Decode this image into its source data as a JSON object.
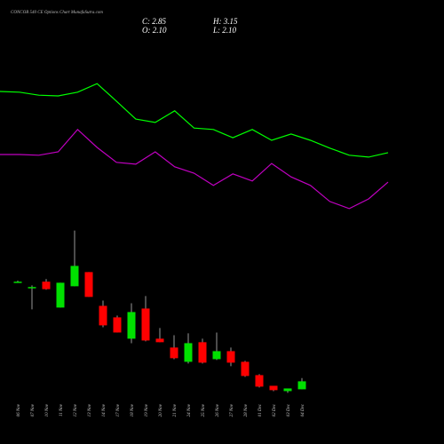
{
  "chart_data": {
    "type": "candlestick",
    "title": "CONCOR 540 CE Options Chart MunafaSutra.com",
    "info": [
      "C: 2.85",
      "H: 3.15",
      "O: 2.10",
      "L: 2.10"
    ],
    "categories": [
      "06 Nov",
      "07 Nov",
      "10 Nov",
      "11 Nov",
      "12 Nov",
      "13 Nov",
      "14 Nov",
      "17 Nov",
      "18 Nov",
      "19 Nov",
      "20 Nov",
      "21 Nov",
      "24 Nov",
      "25 Nov",
      "26 Nov",
      "27 Nov",
      "28 Nov",
      "01 Dec",
      "02 Dec",
      "03 Dec",
      "04 Dec"
    ],
    "open": [
      12.2,
      11.7,
      12.2,
      9.77,
      11.77,
      13.1,
      9.93,
      8.85,
      6.85,
      9.68,
      6.85,
      6.02,
      4.68,
      6.52,
      4.93,
      5.68,
      4.68,
      3.43,
      2.43,
      1.93,
      2.1
    ],
    "high": [
      12.3,
      11.85,
      12.45,
      12.1,
      17.0,
      13.1,
      10.43,
      9.02,
      10.18,
      10.85,
      7.85,
      7.18,
      7.35,
      6.85,
      7.43,
      6.02,
      4.77,
      3.52,
      2.43,
      2.18,
      3.15
    ],
    "low": [
      12.1,
      9.6,
      11.45,
      9.77,
      11.77,
      10.77,
      7.93,
      7.43,
      6.43,
      6.6,
      6.52,
      4.93,
      4.52,
      4.52,
      4.85,
      4.27,
      3.27,
      2.27,
      1.93,
      1.77,
      2.1
    ],
    "close": [
      12.2,
      11.7,
      11.5,
      12.1,
      13.68,
      10.77,
      8.1,
      7.43,
      9.35,
      6.68,
      6.52,
      5.02,
      6.43,
      4.6,
      5.68,
      4.6,
      3.35,
      2.35,
      2.02,
      2.18,
      2.85
    ],
    "up_color": "#00e000",
    "down_color": "#ff0000",
    "ylim": [
      0.3,
      35.3
    ],
    "y2lim": [
      0,
      100
    ],
    "series": [
      {
        "color": "#00ff00",
        "axis": "y2",
        "values": [
          85.0,
          84.8,
          84.0,
          83.8,
          84.8,
          87.1,
          82.4,
          77.6,
          76.7,
          79.8,
          75.2,
          74.8,
          72.6,
          74.8,
          71.9,
          73.6,
          71.9,
          69.8,
          67.9,
          67.4,
          68.6
        ]
      },
      {
        "color": "#c000c0",
        "axis": "y2",
        "values": [
          68.1,
          68.1,
          67.9,
          68.8,
          74.8,
          70.0,
          66.0,
          65.5,
          68.8,
          64.8,
          63.1,
          59.8,
          62.9,
          61.0,
          65.7,
          62.1,
          59.8,
          55.5,
          53.6,
          56.2,
          60.7
        ]
      }
    ]
  }
}
